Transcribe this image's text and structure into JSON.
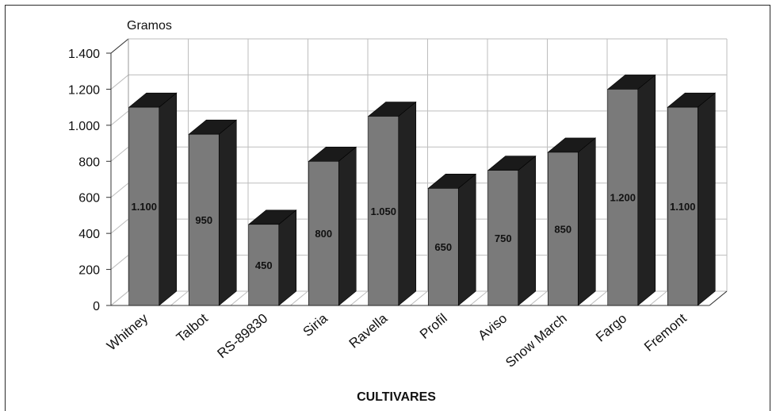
{
  "chart_data": {
    "type": "bar",
    "ylabel": "Gramos",
    "xlabel": "CULTIVARES",
    "ylim": [
      0,
      1400
    ],
    "yticks": [
      0,
      200,
      400,
      600,
      800,
      1000,
      1200,
      1400
    ],
    "ytick_labels": [
      "0",
      "200",
      "400",
      "600",
      "800",
      "1.000",
      "1.200",
      "1.400"
    ],
    "categories": [
      "Whitney",
      "Talbot",
      "RS-89830",
      "Siria",
      "Ravella",
      "Profil",
      "Aviso",
      "Snow March",
      "Fargo",
      "Fremont"
    ],
    "values": [
      1100,
      950,
      450,
      800,
      1050,
      650,
      750,
      850,
      1200,
      1100
    ],
    "value_labels": [
      "1.100",
      "950",
      "450",
      "800",
      "1.050",
      "650",
      "750",
      "850",
      "1.200",
      "1.100"
    ],
    "grid": true,
    "style": "3d-bar",
    "colors": {
      "bar_front": "#7a7a7a",
      "bar_top": "#1a1a1a",
      "bar_side": "#222222",
      "grid": "#bdbdbd"
    }
  }
}
